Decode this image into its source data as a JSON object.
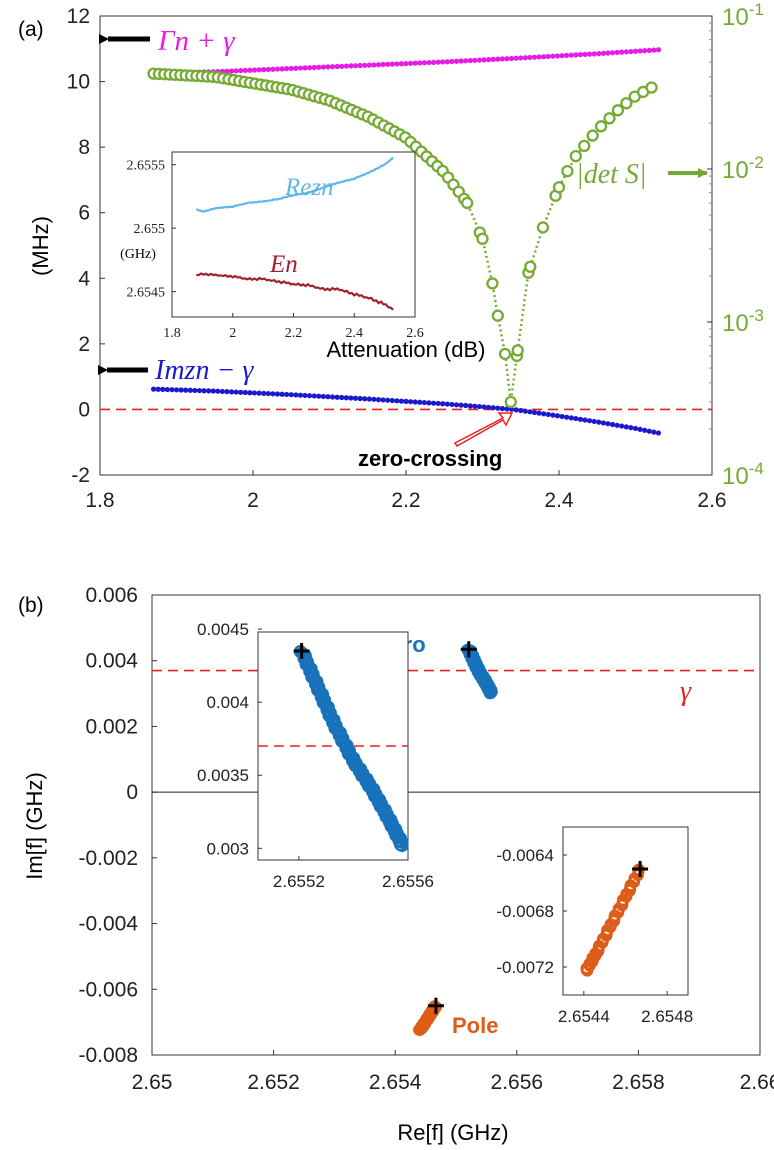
{
  "chart_data": [
    {
      "panel": "(a)",
      "type": "line",
      "xlabel": "Attenuation (dB)",
      "ylabel": "(MHz)",
      "xlim": [
        1.8,
        2.6
      ],
      "ylim": [
        -2,
        12
      ],
      "xticks": [
        "1.8",
        "2",
        "2.2",
        "2.4",
        "2.6"
      ],
      "yticks": [
        "-2",
        "0",
        "2",
        "4",
        "6",
        "8",
        "10",
        "12"
      ],
      "y2_scale": "log",
      "y2lim": [
        0.0001,
        0.1
      ],
      "y2ticks": [
        {
          "value": 0.1,
          "base": "10",
          "exp": "-1"
        },
        {
          "value": 0.01,
          "base": "10",
          "exp": "-2"
        },
        {
          "value": 0.001,
          "base": "10",
          "exp": "-3"
        },
        {
          "value": 0.0001,
          "base": "10",
          "exp": "-4"
        }
      ],
      "reference_line": {
        "y": 0,
        "style": "dashed",
        "color": "#e8211d"
      },
      "annotation": "zero-crossing",
      "series": [
        {
          "name": "Γn + γ",
          "axis": "left",
          "color": "#e61be6",
          "x": [
            1.87,
            1.95,
            2.05,
            2.15,
            2.25,
            2.35,
            2.45,
            2.53
          ],
          "y": [
            10.25,
            10.3,
            10.4,
            10.5,
            10.6,
            10.72,
            10.85,
            10.97
          ]
        },
        {
          "name": "Imzn − γ",
          "axis": "left",
          "color": "#1a1acc",
          "x": [
            1.87,
            1.95,
            2.05,
            2.15,
            2.25,
            2.3,
            2.34,
            2.4,
            2.45,
            2.5,
            2.53
          ],
          "y": [
            0.62,
            0.56,
            0.45,
            0.32,
            0.17,
            0.08,
            0.0,
            -0.2,
            -0.38,
            -0.58,
            -0.72
          ]
        },
        {
          "name": "|det S|",
          "axis": "right",
          "color": "#75aa34",
          "x": [
            1.87,
            1.95,
            2.05,
            2.1,
            2.15,
            2.2,
            2.25,
            2.28,
            2.3,
            2.31,
            2.32,
            2.33,
            2.337,
            2.345,
            2.36,
            2.38,
            2.4,
            2.42,
            2.45,
            2.48,
            2.5,
            2.53
          ],
          "y": [
            0.042,
            0.04,
            0.033,
            0.028,
            0.022,
            0.016,
            0.0095,
            0.006,
            0.0035,
            0.0022,
            0.0011,
            0.0006,
            0.0003,
            0.0006,
            0.0021,
            0.0043,
            0.0076,
            0.0118,
            0.018,
            0.025,
            0.03,
            0.036
          ]
        }
      ],
      "labels": {
        "gamma": "Γn + γ",
        "im": "Imzn − γ",
        "det": "|det S|"
      },
      "inset": {
        "type": "line",
        "ylabel": "(GHz)",
        "xlim": [
          1.8,
          2.6
        ],
        "ylim": [
          2.6543,
          2.6556
        ],
        "xticks": [
          "1.8",
          "2",
          "2.2",
          "2.4",
          "2.6"
        ],
        "yticks": [
          "2.6545",
          "2.655",
          "2.6555"
        ],
        "series": [
          {
            "name": "Rezn",
            "color": "#5fb6e8",
            "x": [
              1.88,
              1.9,
              1.95,
              2.0,
              2.05,
              2.1,
              2.15,
              2.2,
              2.25,
              2.3,
              2.35,
              2.4,
              2.45,
              2.5,
              2.53
            ],
            "y": [
              2.65515,
              2.65513,
              2.65516,
              2.65517,
              2.6552,
              2.65521,
              2.65523,
              2.65526,
              2.65528,
              2.65532,
              2.65536,
              2.65539,
              2.65544,
              2.6555,
              2.65556
            ]
          },
          {
            "name": "En",
            "color": "#a21f32",
            "x": [
              1.88,
              1.9,
              1.95,
              2.0,
              2.05,
              2.1,
              2.15,
              2.2,
              2.25,
              2.3,
              2.35,
              2.4,
              2.45,
              2.5,
              2.53
            ],
            "y": [
              2.65463,
              2.65464,
              2.65463,
              2.65462,
              2.6546,
              2.6546,
              2.65458,
              2.65456,
              2.65455,
              2.65452,
              2.65452,
              2.65448,
              2.65445,
              2.6544,
              2.65436
            ]
          }
        ],
        "labels": {
          "re": "Rezn",
          "en": "En"
        }
      }
    },
    {
      "panel": "(b)",
      "type": "scatter",
      "xlabel": "Re[f] (GHz)",
      "ylabel": "Im[f] (GHz)",
      "xlim": [
        2.65,
        2.66
      ],
      "ylim": [
        -0.008,
        0.006
      ],
      "xticks": [
        "2.65",
        "2.652",
        "2.654",
        "2.656",
        "2.658",
        "2.66"
      ],
      "yticks": [
        "-0.008",
        "-0.006",
        "-0.004",
        "-0.002",
        "0",
        "0.002",
        "0.004",
        "0.006"
      ],
      "reference_lines": [
        {
          "y": 0.0037,
          "style": "dashed",
          "color": "#e8211d",
          "label": "γ"
        },
        {
          "y": 0,
          "style": "solid",
          "color": "#222222"
        }
      ],
      "series": [
        {
          "name": "Zero",
          "color": "#1872bb",
          "start_marker": [
            2.65521,
            0.00435
          ],
          "x": [
            2.65521,
            2.65527,
            2.65533,
            2.6554,
            2.65547,
            2.65553,
            2.65558
          ],
          "y": [
            0.00435,
            0.0041,
            0.00385,
            0.0036,
            0.0034,
            0.0032,
            0.00302
          ]
        },
        {
          "name": "Pole",
          "color": "#dd5d19",
          "start_marker": [
            2.65467,
            -0.0065
          ],
          "x": [
            2.65467,
            2.6546,
            2.65453,
            2.65446,
            2.65441
          ],
          "y": [
            -0.0065,
            -0.0067,
            -0.0069,
            -0.0071,
            -0.00723
          ]
        }
      ],
      "insets": [
        {
          "name": "zero-inset",
          "xlim": [
            2.65505,
            2.6556
          ],
          "ylim": [
            0.00292,
            0.00448
          ],
          "xticks": [
            "2.6552",
            "2.6556"
          ],
          "yticks": [
            "0.003",
            "0.0035",
            "0.004",
            "0.0045"
          ],
          "reference_line": {
            "y": 0.0037,
            "style": "dashed",
            "color": "#e8211d"
          },
          "series": [
            {
              "name": "Zero",
              "color": "#1872bb",
              "start_marker": [
                2.65521,
                0.00435
              ],
              "x": [
                2.65521,
                2.65527,
                2.65533,
                2.6554,
                2.65547,
                2.65553,
                2.65558
              ],
              "y": [
                0.00435,
                0.0041,
                0.00385,
                0.0036,
                0.0034,
                0.0032,
                0.00302
              ]
            }
          ]
        },
        {
          "name": "pole-inset",
          "xlim": [
            2.6543,
            2.6549
          ],
          "ylim": [
            -0.0074,
            -0.0062
          ],
          "xticks": [
            "2.6544",
            "2.6548"
          ],
          "yticks": [
            "-0.0072",
            "-0.0068",
            "-0.0064"
          ],
          "series": [
            {
              "name": "Pole",
              "color": "#dd5d19",
              "start_marker": [
                2.65467,
                -0.0065
              ],
              "x": [
                2.65467,
                2.6546,
                2.65453,
                2.65446,
                2.65441
              ],
              "y": [
                -0.0065,
                -0.0067,
                -0.0069,
                -0.0071,
                -0.00723
              ]
            }
          ]
        }
      ],
      "labels": {
        "zero": "Zero",
        "pole": "Pole",
        "gamma": "γ"
      }
    }
  ]
}
